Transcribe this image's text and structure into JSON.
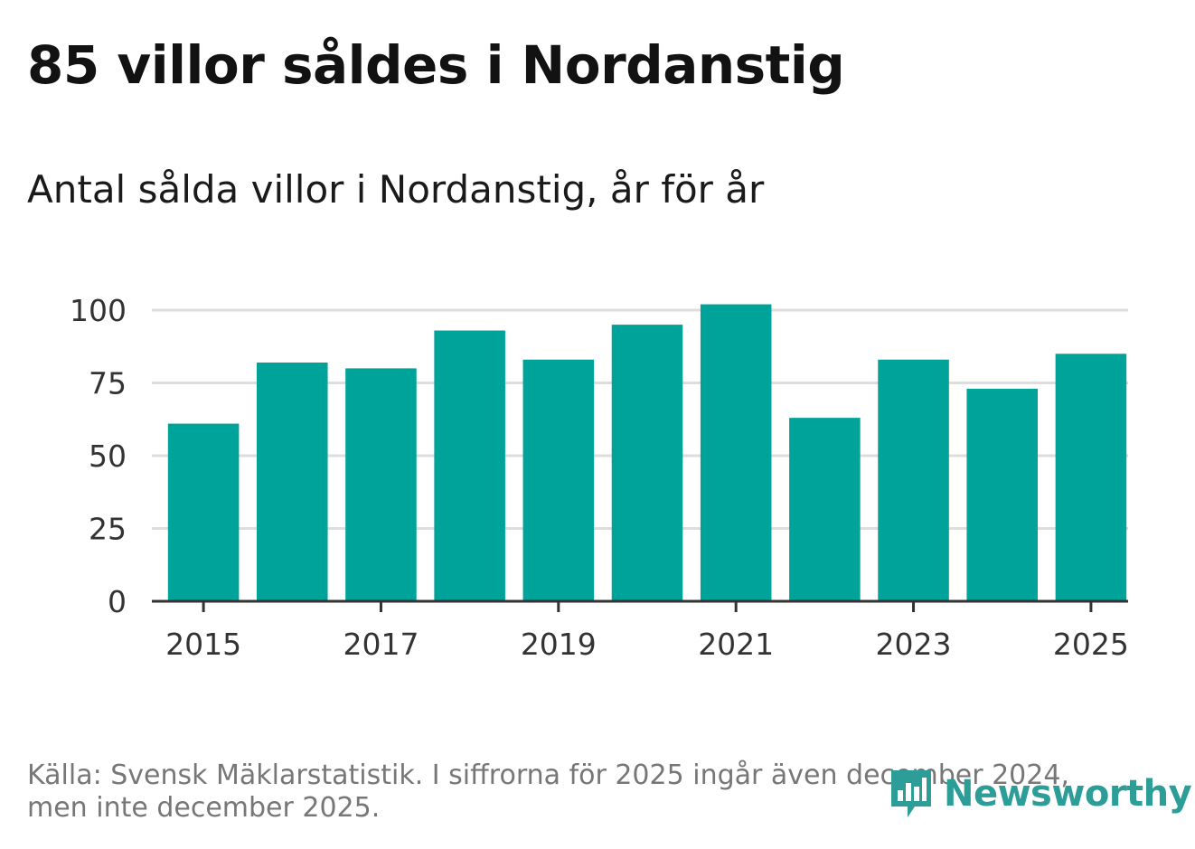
{
  "header": {
    "title": "85 villor såldes i Nordanstig",
    "subtitle": "Antal sålda villor i Nordanstig, år för år"
  },
  "footer": {
    "source": "Källa: Svensk Mäklarstatistik. I siffrorna för 2025 ingår även december 2024, men inte december 2025.",
    "logo_text": "Newsworthy"
  },
  "colors": {
    "bar": "#00a39a",
    "grid": "#dddddd",
    "axis": "#333333",
    "logo": "#2c9e97"
  },
  "chart_data": {
    "type": "bar",
    "title": "Antal sålda villor i Nordanstig, år för år",
    "xlabel": "",
    "ylabel": "",
    "categories": [
      "2015",
      "2016",
      "2017",
      "2018",
      "2019",
      "2020",
      "2021",
      "2022",
      "2023",
      "2024",
      "2025"
    ],
    "values": [
      61,
      82,
      80,
      93,
      83,
      95,
      102,
      63,
      83,
      73,
      85
    ],
    "ylim": [
      0,
      100
    ],
    "yticks": [
      "0",
      "25",
      "50",
      "75",
      "100"
    ],
    "xticks": [
      "2015",
      "2017",
      "2019",
      "2021",
      "2023",
      "2025"
    ],
    "grid": true
  }
}
